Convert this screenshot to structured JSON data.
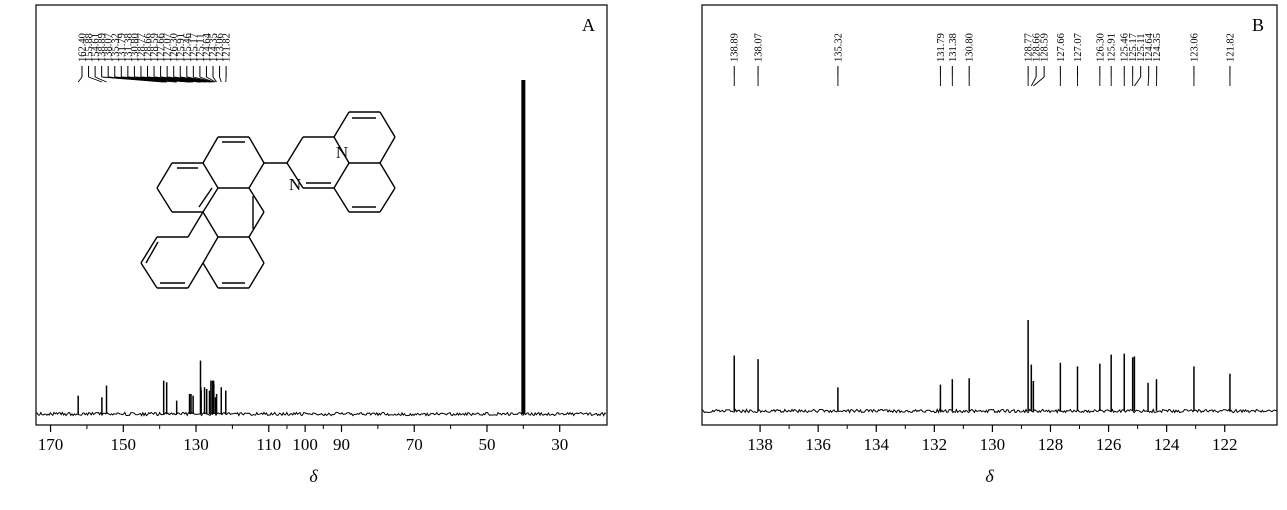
{
  "chart_data": [
    {
      "type": "line",
      "panel_label": "A",
      "xlabel": "δ",
      "ylabel": "",
      "x_reversed": true,
      "xlim": [
        174,
        17
      ],
      "xticks": [
        170,
        150,
        130,
        110,
        100,
        90,
        70,
        50,
        30
      ],
      "xticklabels": [
        "170",
        "150",
        "130",
        "110",
        "100",
        "90",
        "70",
        "50",
        "30"
      ],
      "peak_labels": [
        "162.40",
        "155.88",
        "154.61",
        "138.89",
        "138.07",
        "135.32",
        "131.79",
        "131.38",
        "130.80",
        "128.77",
        "128.66",
        "128.59",
        "127.66",
        "127.07",
        "126.30",
        "125.91",
        "125.46",
        "125.17",
        "125.11",
        "124.64",
        "124.35",
        "123.06",
        "121.82"
      ],
      "peaks": [
        {
          "x": 162.4,
          "y": 0.055
        },
        {
          "x": 155.88,
          "y": 0.05
        },
        {
          "x": 154.61,
          "y": 0.085
        },
        {
          "x": 138.89,
          "y": 0.1
        },
        {
          "x": 138.07,
          "y": 0.095
        },
        {
          "x": 135.32,
          "y": 0.04
        },
        {
          "x": 131.79,
          "y": 0.06
        },
        {
          "x": 131.38,
          "y": 0.06
        },
        {
          "x": 130.8,
          "y": 0.055
        },
        {
          "x": 128.77,
          "y": 0.16
        },
        {
          "x": 128.66,
          "y": 0.08
        },
        {
          "x": 128.59,
          "y": 0.07
        },
        {
          "x": 127.66,
          "y": 0.08
        },
        {
          "x": 127.07,
          "y": 0.075
        },
        {
          "x": 126.3,
          "y": 0.07
        },
        {
          "x": 125.91,
          "y": 0.1
        },
        {
          "x": 125.46,
          "y": 0.1
        },
        {
          "x": 125.17,
          "y": 0.1
        },
        {
          "x": 125.11,
          "y": 0.09
        },
        {
          "x": 124.64,
          "y": 0.05
        },
        {
          "x": 124.35,
          "y": 0.06
        },
        {
          "x": 123.06,
          "y": 0.08
        },
        {
          "x": 121.82,
          "y": 0.07
        },
        {
          "x": 40.0,
          "y": 1.0
        }
      ],
      "structure": {
        "type": "pyrene-naphthyridine",
        "atom_labels": [
          "N",
          "N"
        ]
      }
    },
    {
      "type": "line",
      "panel_label": "B",
      "xlabel": "δ",
      "ylabel": "",
      "x_reversed": true,
      "xlim": [
        140,
        120.2
      ],
      "xticks": [
        138,
        136,
        134,
        132,
        130,
        128,
        126,
        124,
        122
      ],
      "xticklabels": [
        "138",
        "136",
        "134",
        "132",
        "130",
        "128",
        "126",
        "124",
        "122"
      ],
      "peak_labels": [
        "138.89",
        "138.07",
        "135.32",
        "131.79",
        "131.38",
        "130.80",
        "128.77",
        "128.66",
        "128.59",
        "127.66",
        "127.07",
        "126.30",
        "125.91",
        "125.46",
        "125.17",
        "125.11",
        "124.64",
        "124.35",
        "123.06",
        "121.82"
      ],
      "peaks": [
        {
          "x": 138.89,
          "y": 0.61
        },
        {
          "x": 138.07,
          "y": 0.57
        },
        {
          "x": 135.32,
          "y": 0.26
        },
        {
          "x": 131.79,
          "y": 0.29
        },
        {
          "x": 131.38,
          "y": 0.35
        },
        {
          "x": 130.8,
          "y": 0.36
        },
        {
          "x": 128.77,
          "y": 1.0
        },
        {
          "x": 128.66,
          "y": 0.51
        },
        {
          "x": 128.59,
          "y": 0.33
        },
        {
          "x": 127.66,
          "y": 0.53
        },
        {
          "x": 127.07,
          "y": 0.49
        },
        {
          "x": 126.3,
          "y": 0.52
        },
        {
          "x": 125.91,
          "y": 0.62
        },
        {
          "x": 125.46,
          "y": 0.63
        },
        {
          "x": 125.17,
          "y": 0.59
        },
        {
          "x": 125.11,
          "y": 0.6
        },
        {
          "x": 124.64,
          "y": 0.31
        },
        {
          "x": 124.35,
          "y": 0.35
        },
        {
          "x": 123.06,
          "y": 0.49
        },
        {
          "x": 121.82,
          "y": 0.41
        }
      ]
    }
  ]
}
